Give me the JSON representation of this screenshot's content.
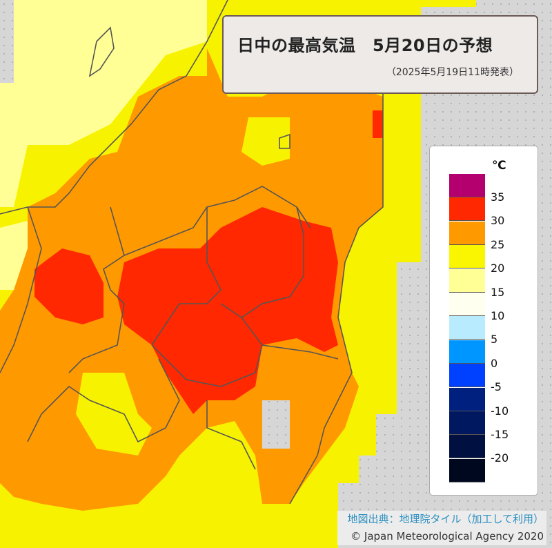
{
  "header": {
    "title": "日中の最高気温　5月20日の予想",
    "issued": "（2025年5月19日11時発表）"
  },
  "legend": {
    "unit": "℃",
    "bins": [
      {
        "color": "#b4006e",
        "label": "35"
      },
      {
        "color": "#ff2800",
        "label": "30"
      },
      {
        "color": "#ff9900",
        "label": "25"
      },
      {
        "color": "#faf500",
        "label": "20"
      },
      {
        "color": "#ffff96",
        "label": "15"
      },
      {
        "color": "#fffff0",
        "label": "10"
      },
      {
        "color": "#b9ebff",
        "label": "5"
      },
      {
        "color": "#0096ff",
        "label": "0"
      },
      {
        "color": "#0041ff",
        "label": "-5"
      },
      {
        "color": "#002080",
        "label": "-10"
      },
      {
        "color": "#001860",
        "label": "-15"
      },
      {
        "color": "#001040",
        "label": "-20"
      },
      {
        "color": "#000820",
        "label": ""
      }
    ]
  },
  "colors": {
    "sea": "#d6d6d6",
    "above_35": "#b4006e",
    "30_35": "#ff2800",
    "25_30": "#ff9900",
    "20_25": "#faf500",
    "15_20": "#ffff96"
  },
  "footer": {
    "source": "地図出典：地理院タイル（加工して利用）",
    "copyright": "© Japan Meteorological Agency 2020"
  }
}
